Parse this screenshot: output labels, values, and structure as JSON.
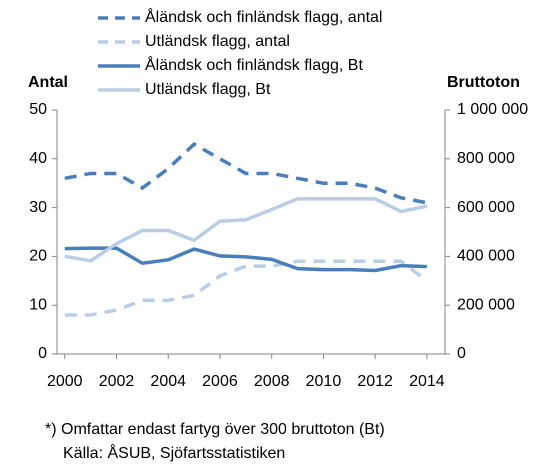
{
  "chart_data": {
    "type": "line",
    "y_label": "Antal",
    "y2_label": "Bruttoton",
    "x": [
      2000,
      2001,
      2002,
      2003,
      2004,
      2005,
      2006,
      2007,
      2008,
      2009,
      2010,
      2011,
      2012,
      2013,
      2014
    ],
    "series": [
      {
        "name": "Åländsk och finländsk flagg, antal",
        "color": "#4a7ebb",
        "dashed": true,
        "values": [
          36,
          37,
          37,
          34,
          38,
          43,
          40,
          37,
          37,
          36,
          35,
          35,
          34,
          32,
          31
        ]
      },
      {
        "name": "Utländsk flagg, antal",
        "color": "#b9cde5",
        "dashed": true,
        "values": [
          8,
          8,
          9,
          11,
          11,
          12,
          16,
          18,
          18,
          19,
          19,
          19,
          19,
          19,
          15
        ]
      },
      {
        "name": "Åländsk och finländsk flagg, Bt",
        "color": "#4a7ebb",
        "dashed": false,
        "axis": "y2",
        "values": [
          432000,
          434000,
          434000,
          372000,
          386000,
          430000,
          402000,
          398000,
          388000,
          350000,
          346000,
          346000,
          342000,
          362000,
          358000
        ]
      },
      {
        "name": "Utländsk flagg, Bt",
        "color": "#b9cde5",
        "dashed": false,
        "axis": "y2",
        "values": [
          400000,
          382000,
          452000,
          506000,
          506000,
          466000,
          544000,
          550000,
          592000,
          636000,
          636000,
          636000,
          636000,
          584000,
          606000
        ]
      }
    ],
    "xlim": [
      1999.7,
      2014.7
    ],
    "xticks": [
      2000,
      2002,
      2004,
      2006,
      2008,
      2010,
      2012,
      2014
    ],
    "ylim": [
      0,
      50
    ],
    "yticks": [
      0,
      10,
      20,
      30,
      40,
      50
    ],
    "y2lim": [
      0,
      1000000
    ],
    "y2ticks": [
      0,
      {
        "value": 200000,
        "label": "200 000"
      },
      {
        "value": 400000,
        "label": "400 000"
      },
      {
        "value": 600000,
        "label": "600 000"
      },
      {
        "value": 800000,
        "label": "800 000"
      },
      {
        "value": 1000000,
        "label": "1 000 000"
      }
    ],
    "notes": [
      "*) Omfattar endast fartyg över 300 bruttoton (Bt)",
      "Källa: ÅSUB, Sjöfartsstatistiken"
    ]
  }
}
